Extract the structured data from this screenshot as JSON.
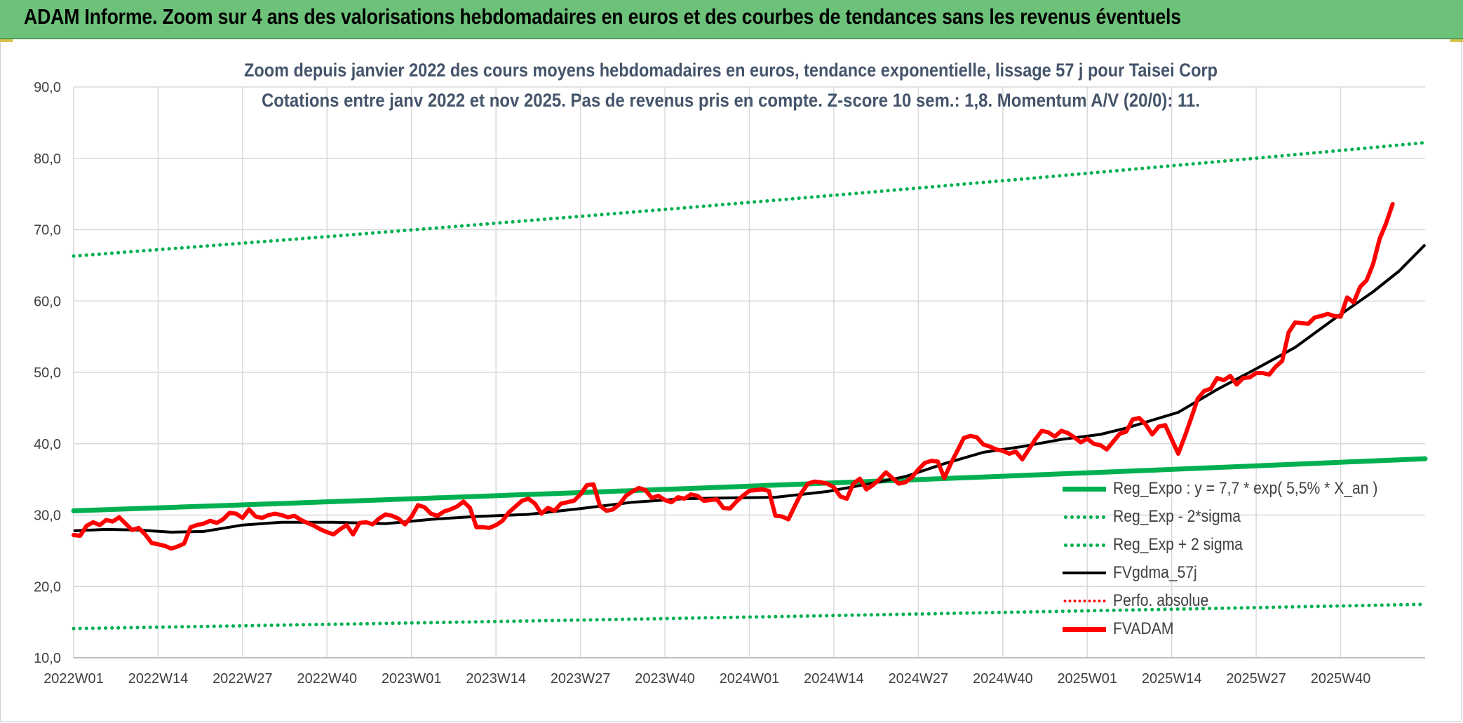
{
  "banner": {
    "title": "ADAM Informe. Zoom sur 4 ans des valorisations hebdomadaires en euros et des courbes de tendances sans les revenus éventuels"
  },
  "colors": {
    "banner_bg": "#6dc27a",
    "trend_green": "#00b050",
    "fvadam_red": "#ff0000",
    "fvgdma_black": "#000000",
    "grid": "#d9d9d9",
    "text": "#404040"
  },
  "chart_data": {
    "type": "line",
    "title": "Zoom depuis janvier 2022 des cours moyens hebdomadaires en euros, tendance exponentielle, lissage 57 j pour Taisei Corp",
    "subtitle": "Cotations entre janv 2022 et nov 2025. Pas de revenus pris en compte. Z-score 10 sem.: 1,8. Momentum A/V (20/0): 11.",
    "xlabel": "",
    "ylabel": "",
    "ylim": [
      10,
      90
    ],
    "yticks": [
      "10,0",
      "20,0",
      "30,0",
      "40,0",
      "50,0",
      "60,0",
      "70,0",
      "80,0",
      "90,0"
    ],
    "x_tick_labels": [
      "2022W01",
      "2022W14",
      "2022W27",
      "2022W40",
      "2023W01",
      "2023W14",
      "2023W27",
      "2023W40",
      "2024W01",
      "2024W14",
      "2024W27",
      "2024W40",
      "2025W01",
      "2025W14",
      "2025W27",
      "2025W40"
    ],
    "x_tick_week_index": [
      0,
      13,
      26,
      39,
      52,
      65,
      78,
      91,
      104,
      117,
      130,
      143,
      156,
      169,
      182,
      195
    ],
    "n_weeks": 209,
    "grid": true,
    "legend_position": "bottom-right",
    "series": [
      {
        "name": "Reg_Expo : y = 7,7 * exp( 5,5% *  X_an )",
        "style": "solid-thick",
        "color": "#00b050",
        "points": [
          [
            0,
            30.6
          ],
          [
            208,
            37.9
          ]
        ]
      },
      {
        "name": "Reg_Exp - 2*sigma",
        "style": "dotted",
        "color": "#00b050",
        "points": [
          [
            0,
            14.1
          ],
          [
            208,
            17.5
          ]
        ]
      },
      {
        "name": "Reg_Exp + 2 sigma",
        "style": "dotted",
        "color": "#00b050",
        "points": [
          [
            0,
            66.3
          ],
          [
            208,
            82.2
          ]
        ]
      },
      {
        "name": "FVgdma_57j",
        "style": "solid",
        "color": "#000000",
        "points": [
          [
            0,
            27.8
          ],
          [
            5,
            28.0
          ],
          [
            10,
            27.9
          ],
          [
            15,
            27.6
          ],
          [
            20,
            27.7
          ],
          [
            26,
            28.6
          ],
          [
            32,
            29.0
          ],
          [
            40,
            29.0
          ],
          [
            48,
            28.8
          ],
          [
            55,
            29.4
          ],
          [
            62,
            29.8
          ],
          [
            70,
            30.1
          ],
          [
            78,
            30.9
          ],
          [
            86,
            31.8
          ],
          [
            94,
            32.3
          ],
          [
            100,
            32.4
          ],
          [
            108,
            32.5
          ],
          [
            116,
            33.3
          ],
          [
            122,
            34.3
          ],
          [
            128,
            35.4
          ],
          [
            134,
            37.2
          ],
          [
            140,
            38.8
          ],
          [
            146,
            39.6
          ],
          [
            152,
            40.6
          ],
          [
            158,
            41.3
          ],
          [
            162,
            42.2
          ],
          [
            170,
            44.4
          ],
          [
            176,
            47.6
          ],
          [
            182,
            50.5
          ],
          [
            188,
            53.5
          ],
          [
            194,
            57.5
          ],
          [
            200,
            61.3
          ],
          [
            204,
            64.2
          ],
          [
            208,
            67.9
          ]
        ]
      },
      {
        "name": "Perfo. absolue",
        "style": "dotted",
        "color": "#ff0000",
        "points": []
      },
      {
        "name": "FVADAM",
        "style": "solid-thick",
        "color": "#ff0000",
        "points": [
          [
            0,
            27.2
          ],
          [
            1,
            27.1
          ],
          [
            2,
            28.5
          ],
          [
            3,
            29.0
          ],
          [
            4,
            28.6
          ],
          [
            5,
            29.3
          ],
          [
            6,
            29.1
          ],
          [
            7,
            29.7
          ],
          [
            8,
            28.8
          ],
          [
            9,
            27.9
          ],
          [
            10,
            28.2
          ],
          [
            11,
            27.3
          ],
          [
            12,
            26.1
          ],
          [
            13,
            25.9
          ],
          [
            14,
            25.7
          ],
          [
            15,
            25.3
          ],
          [
            16,
            25.6
          ],
          [
            17,
            26.0
          ],
          [
            18,
            28.3
          ],
          [
            19,
            28.6
          ],
          [
            20,
            28.8
          ],
          [
            21,
            29.2
          ],
          [
            22,
            28.9
          ],
          [
            23,
            29.4
          ],
          [
            24,
            30.3
          ],
          [
            25,
            30.2
          ],
          [
            26,
            29.6
          ],
          [
            27,
            30.8
          ],
          [
            28,
            29.8
          ],
          [
            29,
            29.6
          ],
          [
            30,
            30.0
          ],
          [
            31,
            30.2
          ],
          [
            32,
            30.0
          ],
          [
            33,
            29.7
          ],
          [
            34,
            29.9
          ],
          [
            35,
            29.3
          ],
          [
            36,
            28.9
          ],
          [
            37,
            28.5
          ],
          [
            38,
            28.0
          ],
          [
            39,
            27.6
          ],
          [
            40,
            27.3
          ],
          [
            41,
            28.0
          ],
          [
            42,
            28.6
          ],
          [
            43,
            27.3
          ],
          [
            44,
            28.9
          ],
          [
            45,
            29.0
          ],
          [
            46,
            28.7
          ],
          [
            47,
            29.5
          ],
          [
            48,
            30.1
          ],
          [
            49,
            29.9
          ],
          [
            50,
            29.5
          ],
          [
            51,
            28.7
          ],
          [
            52,
            29.8
          ],
          [
            53,
            31.4
          ],
          [
            54,
            31.1
          ],
          [
            55,
            30.2
          ],
          [
            56,
            29.9
          ],
          [
            57,
            30.5
          ],
          [
            58,
            30.8
          ],
          [
            59,
            31.2
          ],
          [
            60,
            31.9
          ],
          [
            61,
            31.0
          ],
          [
            62,
            28.3
          ],
          [
            63,
            28.3
          ],
          [
            64,
            28.2
          ],
          [
            65,
            28.6
          ],
          [
            66,
            29.2
          ],
          [
            67,
            30.4
          ],
          [
            68,
            31.2
          ],
          [
            69,
            32.0
          ],
          [
            70,
            32.3
          ],
          [
            71,
            31.6
          ],
          [
            72,
            30.2
          ],
          [
            73,
            31.0
          ],
          [
            74,
            30.6
          ],
          [
            75,
            31.6
          ],
          [
            76,
            31.8
          ],
          [
            77,
            32.0
          ],
          [
            78,
            32.9
          ],
          [
            79,
            34.2
          ],
          [
            80,
            34.3
          ],
          [
            81,
            31.3
          ],
          [
            82,
            30.6
          ],
          [
            83,
            30.8
          ],
          [
            84,
            31.5
          ],
          [
            85,
            32.7
          ],
          [
            86,
            33.3
          ],
          [
            87,
            33.8
          ],
          [
            88,
            33.5
          ],
          [
            89,
            32.4
          ],
          [
            90,
            32.7
          ],
          [
            91,
            32.1
          ],
          [
            92,
            31.8
          ],
          [
            93,
            32.5
          ],
          [
            94,
            32.3
          ],
          [
            95,
            32.9
          ],
          [
            96,
            32.7
          ],
          [
            97,
            32.0
          ],
          [
            98,
            32.1
          ],
          [
            99,
            32.2
          ],
          [
            100,
            31.0
          ],
          [
            101,
            30.9
          ],
          [
            102,
            31.9
          ],
          [
            103,
            32.7
          ],
          [
            104,
            33.4
          ],
          [
            105,
            33.5
          ],
          [
            106,
            33.6
          ],
          [
            107,
            33.4
          ],
          [
            108,
            29.9
          ],
          [
            109,
            29.8
          ],
          [
            110,
            29.4
          ],
          [
            111,
            31.3
          ],
          [
            112,
            33.1
          ],
          [
            113,
            34.4
          ],
          [
            114,
            34.7
          ],
          [
            115,
            34.6
          ],
          [
            116,
            34.4
          ],
          [
            117,
            33.9
          ],
          [
            118,
            32.6
          ],
          [
            119,
            32.3
          ],
          [
            120,
            34.4
          ],
          [
            121,
            35.1
          ],
          [
            122,
            33.6
          ],
          [
            123,
            34.2
          ],
          [
            124,
            35.0
          ],
          [
            125,
            36.0
          ],
          [
            126,
            35.2
          ],
          [
            127,
            34.4
          ],
          [
            128,
            34.6
          ],
          [
            129,
            35.3
          ],
          [
            130,
            36.4
          ],
          [
            131,
            37.3
          ],
          [
            132,
            37.6
          ],
          [
            133,
            37.5
          ],
          [
            134,
            35.2
          ],
          [
            135,
            37.2
          ],
          [
            136,
            39.0
          ],
          [
            137,
            40.8
          ],
          [
            138,
            41.1
          ],
          [
            139,
            40.9
          ],
          [
            140,
            39.9
          ],
          [
            141,
            39.6
          ],
          [
            142,
            39.2
          ],
          [
            143,
            39.0
          ],
          [
            144,
            38.6
          ],
          [
            145,
            38.9
          ],
          [
            146,
            37.8
          ],
          [
            147,
            39.2
          ],
          [
            148,
            40.6
          ],
          [
            149,
            41.8
          ],
          [
            150,
            41.6
          ],
          [
            151,
            41.0
          ],
          [
            152,
            41.8
          ],
          [
            153,
            41.5
          ],
          [
            154,
            40.9
          ],
          [
            155,
            40.2
          ],
          [
            156,
            40.7
          ],
          [
            157,
            40.0
          ],
          [
            158,
            39.8
          ],
          [
            159,
            39.2
          ],
          [
            160,
            40.3
          ],
          [
            161,
            41.4
          ],
          [
            162,
            41.7
          ],
          [
            163,
            43.4
          ],
          [
            164,
            43.6
          ],
          [
            165,
            42.7
          ],
          [
            166,
            41.3
          ],
          [
            167,
            42.4
          ],
          [
            168,
            42.6
          ],
          [
            169,
            40.6
          ],
          [
            170,
            38.6
          ],
          [
            171,
            41.0
          ],
          [
            172,
            43.6
          ],
          [
            173,
            46.3
          ],
          [
            174,
            47.4
          ],
          [
            175,
            47.7
          ],
          [
            176,
            49.2
          ],
          [
            177,
            48.9
          ],
          [
            178,
            49.5
          ],
          [
            179,
            48.3
          ],
          [
            180,
            49.2
          ],
          [
            181,
            49.3
          ],
          [
            182,
            49.9
          ],
          [
            183,
            49.9
          ],
          [
            184,
            49.7
          ],
          [
            185,
            50.8
          ],
          [
            186,
            51.6
          ],
          [
            187,
            55.6
          ],
          [
            188,
            57.0
          ],
          [
            189,
            56.9
          ],
          [
            190,
            56.8
          ],
          [
            191,
            57.7
          ],
          [
            192,
            57.9
          ],
          [
            193,
            58.2
          ],
          [
            194,
            57.9
          ],
          [
            195,
            57.8
          ],
          [
            196,
            60.5
          ],
          [
            197,
            59.8
          ],
          [
            198,
            62.0
          ],
          [
            199,
            62.9
          ],
          [
            200,
            65.2
          ],
          [
            201,
            68.7
          ],
          [
            202,
            70.9
          ],
          [
            203,
            73.6
          ]
        ]
      }
    ]
  },
  "legend": {
    "items": [
      {
        "label": "Reg_Expo : y = 7,7 * exp( 5,5% *  X_an )"
      },
      {
        "label": "Reg_Exp - 2*sigma"
      },
      {
        "label": "Reg_Exp + 2 sigma"
      },
      {
        "label": "FVgdma_57j"
      },
      {
        "label": "Perfo. absolue"
      },
      {
        "label": "FVADAM"
      }
    ]
  }
}
